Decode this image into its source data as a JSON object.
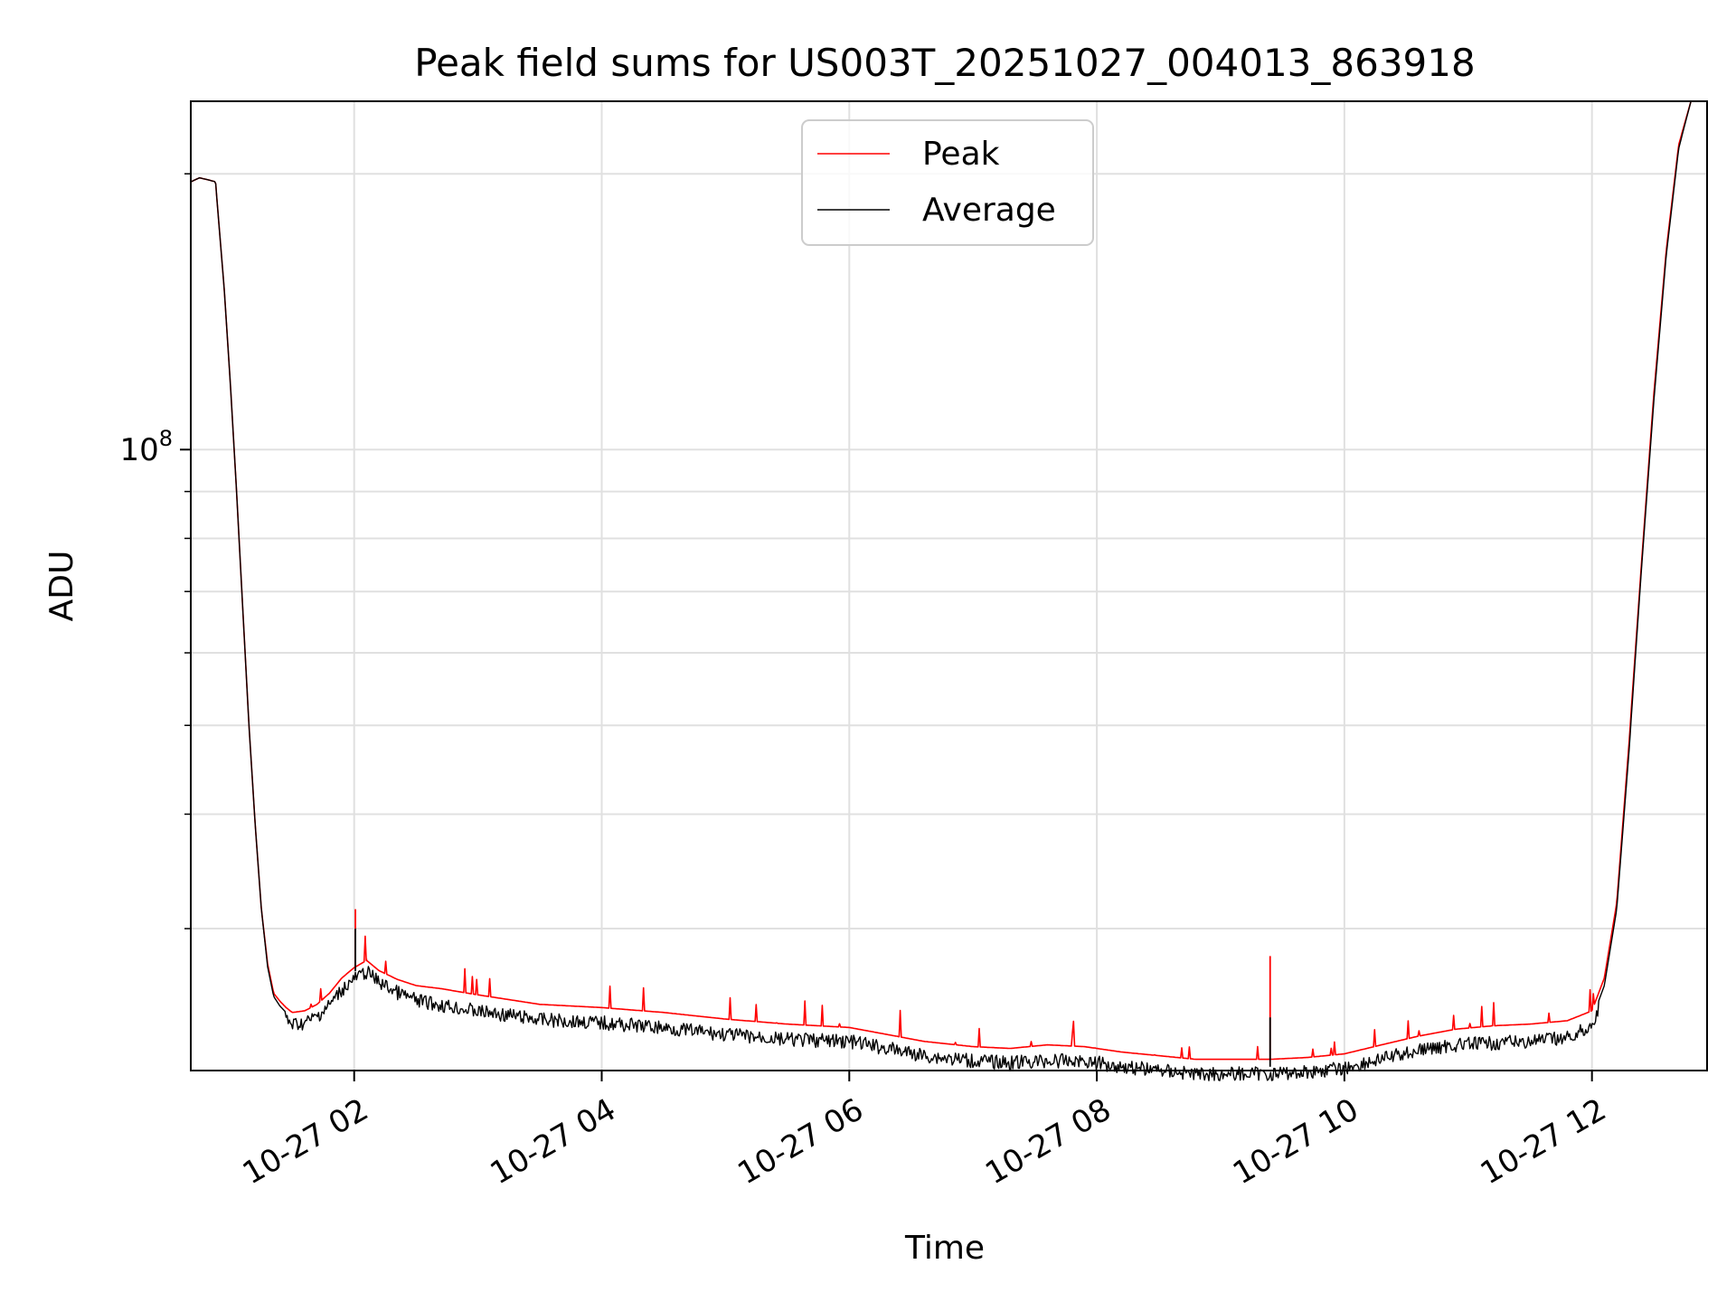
{
  "chart_data": {
    "type": "line",
    "title": "Peak field sums for US003T_20251027_004013_863918",
    "xlabel": "Time",
    "ylabel": "ADU",
    "y_scale": "log",
    "grid": true,
    "legend_position": "upper center",
    "xlim_hours": [
      0.68,
      12.93
    ],
    "ylim": [
      21000000,
      240000000
    ],
    "x_ticks": [
      {
        "hour": 2,
        "label": "10-27 02"
      },
      {
        "hour": 4,
        "label": "10-27 04"
      },
      {
        "hour": 6,
        "label": "10-27 06"
      },
      {
        "hour": 8,
        "label": "10-27 08"
      },
      {
        "hour": 10,
        "label": "10-27 10"
      },
      {
        "hour": 12,
        "label": "10-27 12"
      }
    ],
    "y_major_ticks": [
      {
        "value": 100000000,
        "base": "10",
        "exponent": "8"
      }
    ],
    "y_minor_ticks": [
      30000000,
      40000000,
      50000000,
      60000000,
      70000000,
      80000000,
      90000000,
      200000000
    ],
    "series": [
      {
        "name": "Peak",
        "color": "#ff0000",
        "x_hours": [
          0.68,
          0.75,
          0.82,
          0.88,
          0.95,
          1.0,
          1.05,
          1.1,
          1.15,
          1.2,
          1.25,
          1.3,
          1.35,
          1.4,
          1.45,
          1.5,
          1.6,
          1.7,
          1.8,
          1.9,
          2.0,
          2.1,
          2.2,
          2.35,
          2.5,
          2.7,
          3.0,
          3.5,
          4.0,
          4.5,
          5.0,
          5.5,
          6.0,
          6.3,
          6.6,
          7.0,
          7.3,
          7.6,
          7.9,
          8.2,
          8.5,
          8.8,
          9.1,
          9.4,
          9.7,
          10.0,
          10.3,
          10.6,
          10.9,
          11.2,
          11.5,
          11.8,
          12.0,
          12.1,
          12.2,
          12.3,
          12.4,
          12.5,
          12.6,
          12.7,
          12.8,
          12.93
        ],
        "y": [
          196000000,
          198000000,
          197000000,
          196000000,
          150000000,
          118000000,
          90000000,
          67000000,
          50000000,
          39000000,
          31500000,
          27500000,
          25500000,
          25000000,
          24600000,
          24300000,
          24400000,
          24800000,
          25500000,
          26500000,
          27200000,
          27700000,
          27000000,
          26400000,
          26000000,
          25800000,
          25400000,
          24800000,
          24600000,
          24300000,
          23900000,
          23600000,
          23400000,
          23000000,
          22600000,
          22300000,
          22200000,
          22400000,
          22300000,
          22000000,
          21800000,
          21600000,
          21600000,
          21600000,
          21700000,
          21900000,
          22400000,
          22900000,
          23300000,
          23500000,
          23600000,
          23800000,
          24400000,
          26500000,
          32000000,
          48000000,
          75000000,
          115000000,
          165000000,
          215000000,
          240000000,
          240000000
        ],
        "spikes": [
          {
            "hour": 2.01,
            "value": 31500000
          },
          {
            "hour": 2.1,
            "value": 27800000
          },
          {
            "hour": 9.4,
            "value": 28000000
          }
        ]
      },
      {
        "name": "Average",
        "color": "#000000",
        "x_hours": [
          0.68,
          0.75,
          0.82,
          0.88,
          0.95,
          1.0,
          1.05,
          1.1,
          1.15,
          1.2,
          1.25,
          1.3,
          1.35,
          1.4,
          1.45,
          1.5,
          1.6,
          1.7,
          1.8,
          1.9,
          2.0,
          2.1,
          2.2,
          2.35,
          2.5,
          2.7,
          3.0,
          3.5,
          4.0,
          4.5,
          5.0,
          5.5,
          6.0,
          6.3,
          6.6,
          7.0,
          7.3,
          7.6,
          7.9,
          8.2,
          8.5,
          8.8,
          9.1,
          9.4,
          9.7,
          10.0,
          10.3,
          10.6,
          10.9,
          11.2,
          11.5,
          11.8,
          12.0,
          12.1,
          12.2,
          12.3,
          12.4,
          12.5,
          12.6,
          12.7,
          12.8,
          12.93
        ],
        "y": [
          196000000,
          198000000,
          197000000,
          196000000,
          150000000,
          118000000,
          90000000,
          67000000,
          50000000,
          39000000,
          31500000,
          27300000,
          25300000,
          24700000,
          24300000,
          24000000,
          24100000,
          24500000,
          25200000,
          26200000,
          26900000,
          27400000,
          26700000,
          26000000,
          25500000,
          25200000,
          24800000,
          24300000,
          24100000,
          23800000,
          23400000,
          23100000,
          23000000,
          22600000,
          22200000,
          21900000,
          21800000,
          21900000,
          21900000,
          21600000,
          21400000,
          21200000,
          21200000,
          21200000,
          21300000,
          21500000,
          22000000,
          22500000,
          22800000,
          22900000,
          23000000,
          23200000,
          23900000,
          26000000,
          31500000,
          47000000,
          74000000,
          113000000,
          163000000,
          213000000,
          240000000,
          240000000
        ],
        "spikes": [
          {
            "hour": 2.01,
            "value": 30000000
          },
          {
            "hour": 9.4,
            "value": 24000000
          }
        ]
      }
    ]
  }
}
